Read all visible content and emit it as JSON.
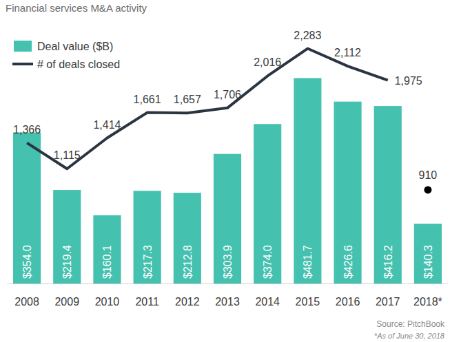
{
  "chart_data": {
    "type": "bar",
    "title": "Financial services M&A activity",
    "source": "Source: PitchBook",
    "footnote": "*As of June 30, 2018",
    "categories": [
      "2008",
      "2009",
      "2010",
      "2011",
      "2012",
      "2013",
      "2014",
      "2015",
      "2016",
      "2017",
      "2018*"
    ],
    "ylim": [
      0,
      560
    ],
    "y2lim": [
      0,
      2320
    ],
    "tick_labels": false,
    "grid": false,
    "legend": "top-left",
    "data_labels": true,
    "series": [
      {
        "name": "Deal value ($B)",
        "type": "bar",
        "color": "#45c1b0",
        "values": [
          354.0,
          219.4,
          160.1,
          217.3,
          212.8,
          303.9,
          374.0,
          481.7,
          426.6,
          416.2,
          140.3
        ],
        "value_labels": [
          "$354.0",
          "$219.4",
          "$160.1",
          "$217.3",
          "$212.8",
          "$303.9",
          "$374.0",
          "$481.7",
          "$426.6",
          "$416.2",
          "$140.3"
        ]
      },
      {
        "name": "# of deals closed",
        "type": "line",
        "axis": "y2",
        "color": "#2b3441",
        "marker": "none",
        "values": [
          1366,
          1115,
          1414,
          1661,
          1657,
          1706,
          2016,
          2283,
          2112,
          1975,
          null
        ],
        "value_labels": [
          "1,366",
          "1,115",
          "1,414",
          "1,661",
          "1,657",
          "1,706",
          "2,016",
          "2,283",
          "2,112",
          "1,975",
          null
        ]
      },
      {
        "type": "scatter",
        "axis": "y2",
        "color": "#000000",
        "marker": "circle",
        "values": [
          null,
          null,
          null,
          null,
          null,
          null,
          null,
          null,
          null,
          null,
          910
        ]
      }
    ]
  }
}
